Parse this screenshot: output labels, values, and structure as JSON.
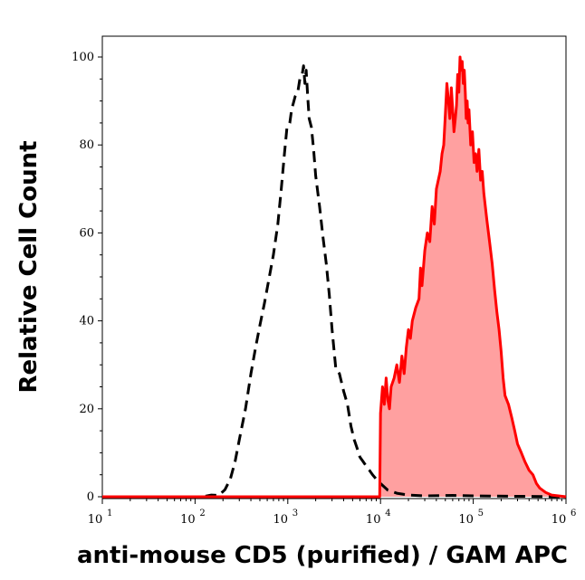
{
  "chart_data": {
    "type": "area",
    "xlabel": "anti-mouse CD5 (purified) / GAM APC",
    "ylabel": "Relative Cell Count",
    "x_scale": "log",
    "xlim": [
      10,
      1000000
    ],
    "ylim": [
      0,
      105
    ],
    "x_ticks": [
      {
        "base": "10",
        "exp": "1",
        "value": 10
      },
      {
        "base": "10",
        "exp": "2",
        "value": 100
      },
      {
        "base": "10",
        "exp": "3",
        "value": 1000
      },
      {
        "base": "10",
        "exp": "4",
        "value": 10000
      },
      {
        "base": "10",
        "exp": "5",
        "value": 100000
      },
      {
        "base": "10",
        "exp": "6",
        "value": 1000000
      }
    ],
    "y_ticks": [
      "0",
      "20",
      "40",
      "60",
      "80",
      "100"
    ],
    "grid": false,
    "legend": "none",
    "series": [
      {
        "style": "dashed",
        "color": "#000000",
        "fill": "none",
        "points": [
          [
            10,
            0
          ],
          [
            120,
            0
          ],
          [
            150,
            0.4
          ],
          [
            180,
            0.3
          ],
          [
            210,
            1.6
          ],
          [
            240,
            4
          ],
          [
            270,
            8
          ],
          [
            300,
            13
          ],
          [
            350,
            20
          ],
          [
            400,
            28
          ],
          [
            450,
            34
          ],
          [
            500,
            39
          ],
          [
            560,
            44
          ],
          [
            620,
            49
          ],
          [
            700,
            55
          ],
          [
            780,
            62
          ],
          [
            850,
            70
          ],
          [
            920,
            78
          ],
          [
            980,
            84
          ],
          [
            1050,
            85
          ],
          [
            1100,
            88
          ],
          [
            1200,
            91
          ],
          [
            1280,
            92
          ],
          [
            1350,
            95
          ],
          [
            1430,
            96
          ],
          [
            1480,
            98
          ],
          [
            1530,
            94
          ],
          [
            1580,
            97
          ],
          [
            1640,
            91
          ],
          [
            1700,
            86
          ],
          [
            1800,
            84
          ],
          [
            1900,
            79
          ],
          [
            2000,
            73
          ],
          [
            2200,
            66
          ],
          [
            2400,
            59
          ],
          [
            2600,
            53
          ],
          [
            2800,
            46
          ],
          [
            3000,
            38
          ],
          [
            3300,
            29
          ],
          [
            3600,
            28
          ],
          [
            4000,
            24
          ],
          [
            4400,
            21
          ],
          [
            4800,
            16
          ],
          [
            5200,
            13
          ],
          [
            5600,
            11
          ],
          [
            6000,
            9
          ],
          [
            6500,
            8
          ],
          [
            7000,
            7
          ],
          [
            7600,
            6
          ],
          [
            8200,
            5
          ],
          [
            9000,
            4
          ],
          [
            10000,
            3
          ],
          [
            12000,
            1.5
          ],
          [
            15000,
            0.8
          ],
          [
            20000,
            0.4
          ],
          [
            30000,
            0.2
          ],
          [
            60000,
            0.3
          ],
          [
            100000,
            0.2
          ],
          [
            1000000,
            0
          ]
        ]
      },
      {
        "style": "solid",
        "color": "#ff0000",
        "fill": "#ffa0a0",
        "points": [
          [
            10,
            0
          ],
          [
            9800,
            0
          ],
          [
            10000,
            19
          ],
          [
            10500,
            25
          ],
          [
            11000,
            21
          ],
          [
            11500,
            27
          ],
          [
            12000,
            22
          ],
          [
            12500,
            20
          ],
          [
            13000,
            25
          ],
          [
            14000,
            27
          ],
          [
            15000,
            30
          ],
          [
            16000,
            26
          ],
          [
            17000,
            32
          ],
          [
            18000,
            28
          ],
          [
            19000,
            34
          ],
          [
            20000,
            38
          ],
          [
            21000,
            36
          ],
          [
            22000,
            40
          ],
          [
            24000,
            43
          ],
          [
            26000,
            45
          ],
          [
            27000,
            52
          ],
          [
            28000,
            48
          ],
          [
            30000,
            56
          ],
          [
            32000,
            60
          ],
          [
            34000,
            58
          ],
          [
            36000,
            66
          ],
          [
            38000,
            62
          ],
          [
            40000,
            70
          ],
          [
            42000,
            72
          ],
          [
            44000,
            74
          ],
          [
            46000,
            78
          ],
          [
            48000,
            80
          ],
          [
            50000,
            87
          ],
          [
            52000,
            94
          ],
          [
            54000,
            90
          ],
          [
            56000,
            86
          ],
          [
            58000,
            93
          ],
          [
            60000,
            88
          ],
          [
            62000,
            83
          ],
          [
            64000,
            86
          ],
          [
            66000,
            89
          ],
          [
            68000,
            96
          ],
          [
            70000,
            92
          ],
          [
            72000,
            100
          ],
          [
            74000,
            97
          ],
          [
            76000,
            99
          ],
          [
            78000,
            94
          ],
          [
            80000,
            97
          ],
          [
            82000,
            92
          ],
          [
            84000,
            86
          ],
          [
            86000,
            90
          ],
          [
            88000,
            85
          ],
          [
            90000,
            88
          ],
          [
            94000,
            80
          ],
          [
            98000,
            83
          ],
          [
            102000,
            76
          ],
          [
            106000,
            78
          ],
          [
            110000,
            74
          ],
          [
            115000,
            79
          ],
          [
            120000,
            72
          ],
          [
            125000,
            74
          ],
          [
            130000,
            69
          ],
          [
            140000,
            63
          ],
          [
            150000,
            58
          ],
          [
            160000,
            53
          ],
          [
            170000,
            47
          ],
          [
            180000,
            42
          ],
          [
            190000,
            38
          ],
          [
            200000,
            33
          ],
          [
            210000,
            27
          ],
          [
            220000,
            23
          ],
          [
            240000,
            21
          ],
          [
            260000,
            18
          ],
          [
            280000,
            15
          ],
          [
            300000,
            12
          ],
          [
            330000,
            10
          ],
          [
            360000,
            8
          ],
          [
            400000,
            6
          ],
          [
            440000,
            5
          ],
          [
            480000,
            3
          ],
          [
            520000,
            2
          ],
          [
            600000,
            1
          ],
          [
            700000,
            0.4
          ],
          [
            1000000,
            0
          ]
        ]
      }
    ]
  }
}
